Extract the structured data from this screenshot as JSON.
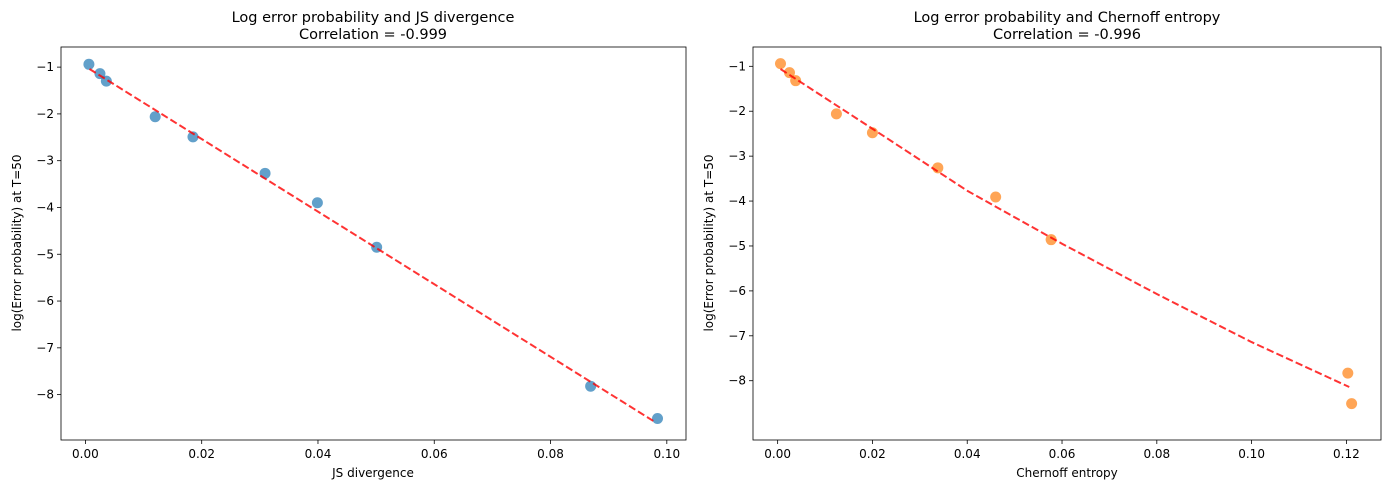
{
  "chart_data": [
    {
      "type": "scatter",
      "title": "Log error probability and JS divergence",
      "subtitle": "Correlation = -0.999",
      "xlabel": "JS divergence",
      "ylabel": "log(Error probability) at T=50",
      "xlim": [
        -0.0042,
        0.1033
      ],
      "ylim": [
        -8.97,
        -0.57
      ],
      "xticks": [
        0.0,
        0.02,
        0.04,
        0.06,
        0.08,
        0.1
      ],
      "xtick_labels": [
        "0.00",
        "0.02",
        "0.04",
        "0.06",
        "0.08",
        "0.10"
      ],
      "yticks": [
        -1,
        -2,
        -3,
        -4,
        -5,
        -6,
        -7,
        -8
      ],
      "ytick_labels": [
        "−1",
        "−2",
        "−3",
        "−4",
        "−5",
        "−6",
        "−7",
        "−8"
      ],
      "grid": false,
      "point_color": "#1f77b4",
      "fit_color": "#ff0000",
      "x": [
        0.0006,
        0.0025,
        0.0036,
        0.012,
        0.0185,
        0.0309,
        0.0399,
        0.0501,
        0.0869,
        0.0984
      ],
      "y": [
        -0.94,
        -1.14,
        -1.3,
        -2.06,
        -2.49,
        -3.27,
        -3.9,
        -4.85,
        -7.82,
        -8.51
      ],
      "fit": {
        "x": [
          0.0007,
          0.0979
        ],
        "y": [
          -1.04,
          -8.58
        ]
      }
    },
    {
      "type": "scatter",
      "title": "Log error probability and Chernoff entropy",
      "subtitle": "Correlation = -0.996",
      "xlabel": "Chernoff entropy",
      "ylabel": "log(Error probability) at T=50",
      "xlim": [
        -0.0052,
        0.1273
      ],
      "ylim": [
        -9.32,
        -0.57
      ],
      "xticks": [
        0.0,
        0.02,
        0.04,
        0.06,
        0.08,
        0.1,
        0.12
      ],
      "xtick_labels": [
        "0.00",
        "0.02",
        "0.04",
        "0.06",
        "0.08",
        "0.10",
        "0.12"
      ],
      "yticks": [
        -1,
        -2,
        -3,
        -4,
        -5,
        -6,
        -7,
        -8
      ],
      "ytick_labels": [
        "−1",
        "−2",
        "−3",
        "−4",
        "−5",
        "−6",
        "−7",
        "−8"
      ],
      "grid": false,
      "point_color": "#ff7f0e",
      "fit_color": "#ff0000",
      "x": [
        0.0006,
        0.0025,
        0.0038,
        0.0124,
        0.02,
        0.0338,
        0.046,
        0.0577,
        0.1203,
        0.1211
      ],
      "y": [
        -0.94,
        -1.14,
        -1.32,
        -2.06,
        -2.48,
        -3.26,
        -3.91,
        -4.86,
        -7.83,
        -8.51
      ],
      "fit": {
        "x": [
          0.0006,
          0.02,
          0.04,
          0.06,
          0.08,
          0.1,
          0.1206
        ],
        "y": [
          -1.06,
          -2.39,
          -3.77,
          -4.95,
          -6.07,
          -7.14,
          -8.14
        ]
      }
    }
  ]
}
